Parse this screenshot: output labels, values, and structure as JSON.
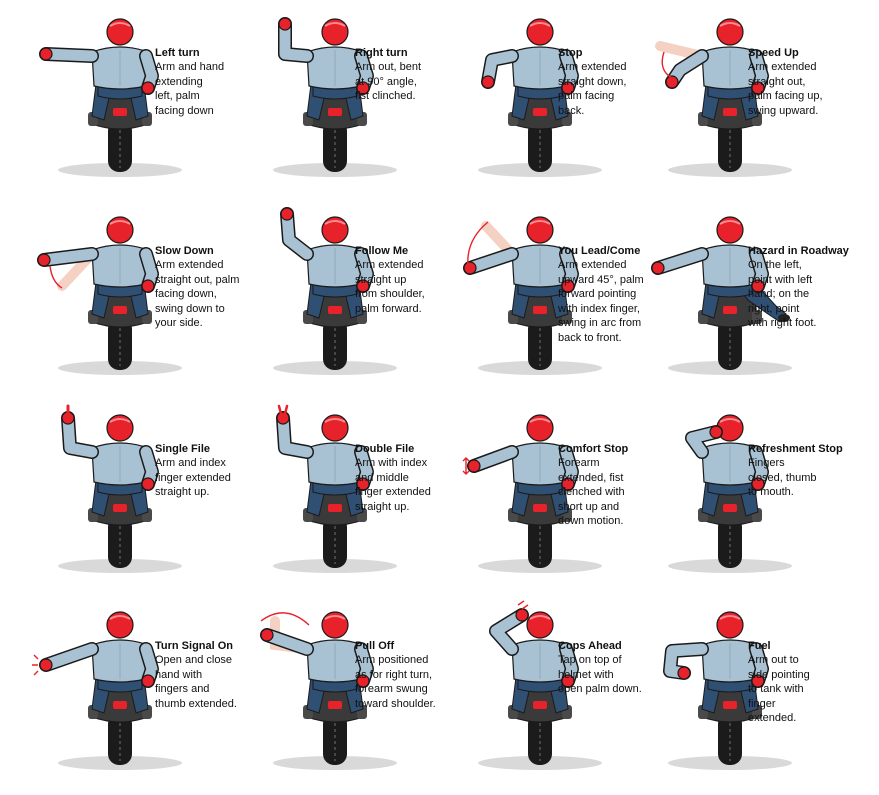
{
  "colors": {
    "helmet": "#e8222a",
    "shirt": "#a9c2d3",
    "shirt_shadow": "#8fa9bb",
    "jeans": "#2f4f73",
    "bike": "#3a3a3a",
    "tire": "#1b1b1b",
    "shadow": "#d9d9d9",
    "glove": "#e8222a",
    "motion": "#e8222a",
    "ghost": "#f2c9b8",
    "outline": "#1a1a1a"
  },
  "signals": [
    {
      "title": "Left turn",
      "description": "Arm and hand extending left, palm facing down",
      "lines": [
        "Arm and hand",
        "extending",
        "left, palm",
        "facing down"
      ],
      "pose": "left-out"
    },
    {
      "title": "Right turn",
      "description": "Arm out, bent at 90° angle, fist clinched.",
      "lines": [
        "Arm out, bent",
        "at 90° angle,",
        "fist clinched."
      ],
      "pose": "left-up-bent"
    },
    {
      "title": "Stop",
      "description": "Arm extended straight down, palm facing back.",
      "lines": [
        "Arm extended",
        "straight down,",
        "palm facing",
        "back."
      ],
      "pose": "left-down"
    },
    {
      "title": "Speed Up",
      "description": "Arm extended straight out, palm facing up, swing upward.",
      "lines": [
        "Arm extended",
        "straight out,",
        "palm facing up,",
        "swing upward."
      ],
      "pose": "left-swing-up"
    },
    {
      "title": "Slow Down",
      "description": "Arm extended straight out, palm facing down, swing down to your side.",
      "lines": [
        "Arm extended",
        "straight out, palm",
        "facing down,",
        "swing down to",
        "your side."
      ],
      "pose": "left-swing-down"
    },
    {
      "title": "Follow Me",
      "description": "Arm extended straight up from shoulder, palm forward.",
      "lines": [
        "Arm extended",
        "straight up",
        "from shoulder,",
        "palm forward."
      ],
      "pose": "left-straight-up"
    },
    {
      "title": "You Lead/Come",
      "description": "Arm extended upward 45°, palm forward pointing with index finger, swing in arc from back to front.",
      "lines": [
        "Arm extended",
        "upward 45°, palm",
        "forward pointing",
        "with index finger,",
        "swing in arc from",
        "back to front."
      ],
      "pose": "left-45"
    },
    {
      "title": "Hazard in Roadway",
      "description": "On the left, point with left hand; on the right, point with right foot.",
      "lines": [
        "On the left,",
        "point with left",
        "hand; on the",
        "right, point",
        "with right foot."
      ],
      "pose": "hazard"
    },
    {
      "title": "Single File",
      "description": "Arm and index finger extended straight up.",
      "lines": [
        "Arm and index",
        "finger extended",
        "straight up."
      ],
      "pose": "left-up-finger"
    },
    {
      "title": "Double File",
      "description": "Arm with index and middle finger extended straight up.",
      "lines": [
        "Arm with index",
        "and middle",
        "finger extended",
        "straight up."
      ],
      "pose": "left-up-two"
    },
    {
      "title": "Comfort Stop",
      "description": "Forearm extended, fist clenched with short up and down motion.",
      "lines": [
        "Forearm",
        "extended, fist",
        "clenched with",
        "short up and",
        "down motion."
      ],
      "pose": "left-fist-pump"
    },
    {
      "title": "Refreshment Stop",
      "description": "Fingers closed, thumb to mouth.",
      "lines": [
        "Fingers",
        "closed, thumb",
        "to mouth."
      ],
      "pose": "thumb-mouth"
    },
    {
      "title": "Turn Signal On",
      "description": "Open and close hand with fingers and thumb extended.",
      "lines": [
        "Open and close",
        "hand with",
        "fingers and",
        "thumb extended."
      ],
      "pose": "left-out-flash"
    },
    {
      "title": "Pull Off",
      "description": "Arm positioned as for right turn, forearm swung toward shoulder.",
      "lines": [
        "Arm positioned",
        "as for right turn,",
        "forearm swung",
        "toward shoulder."
      ],
      "pose": "left-swing-shoulder"
    },
    {
      "title": "Cops Ahead",
      "description": "Tap on top of helmet with open palm down.",
      "lines": [
        "Tap on top of",
        "helmet with",
        "open palm down."
      ],
      "pose": "tap-helmet"
    },
    {
      "title": "Fuel",
      "description": "Arm out to side pointing to tank with finger extended.",
      "lines": [
        "Arm out to",
        "side pointing",
        "to tank with",
        "finger",
        "extended."
      ],
      "pose": "point-tank"
    }
  ]
}
